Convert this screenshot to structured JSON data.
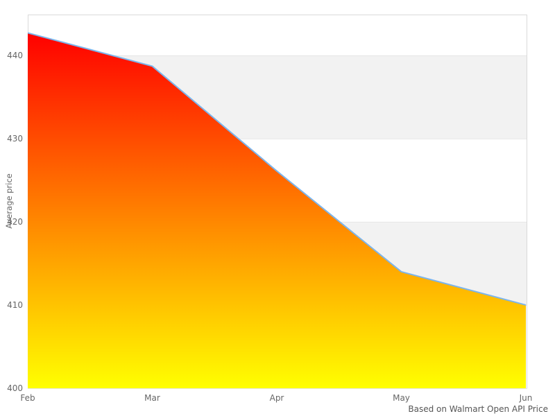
{
  "chart_data": {
    "type": "area",
    "categories": [
      "Feb",
      "Mar",
      "Apr",
      "May",
      "Jun"
    ],
    "values": [
      442.7,
      438.7,
      426.1,
      414,
      410
    ],
    "title": "",
    "xlabel": "",
    "ylabel": "Average price",
    "credits": "Based on Walmart Open API Price",
    "ylim": [
      400,
      444.9
    ],
    "yticks": [
      400,
      410,
      420,
      430,
      440
    ],
    "grid": true,
    "alternate_grid_bands": [
      [
        410,
        420
      ],
      [
        430,
        440
      ]
    ],
    "legend": "none",
    "colors": {
      "line": "#7cb5ec",
      "fill_gradient_top": "#ff0000",
      "fill_gradient_bottom": "#ffff00",
      "band_fill": "#f2f2f2",
      "gridline": "#e6e6e6",
      "plot_border": "#d9d9d9",
      "tick_text": "#666666",
      "axis_title_text": "#666666",
      "credits_text": "#555555"
    }
  }
}
